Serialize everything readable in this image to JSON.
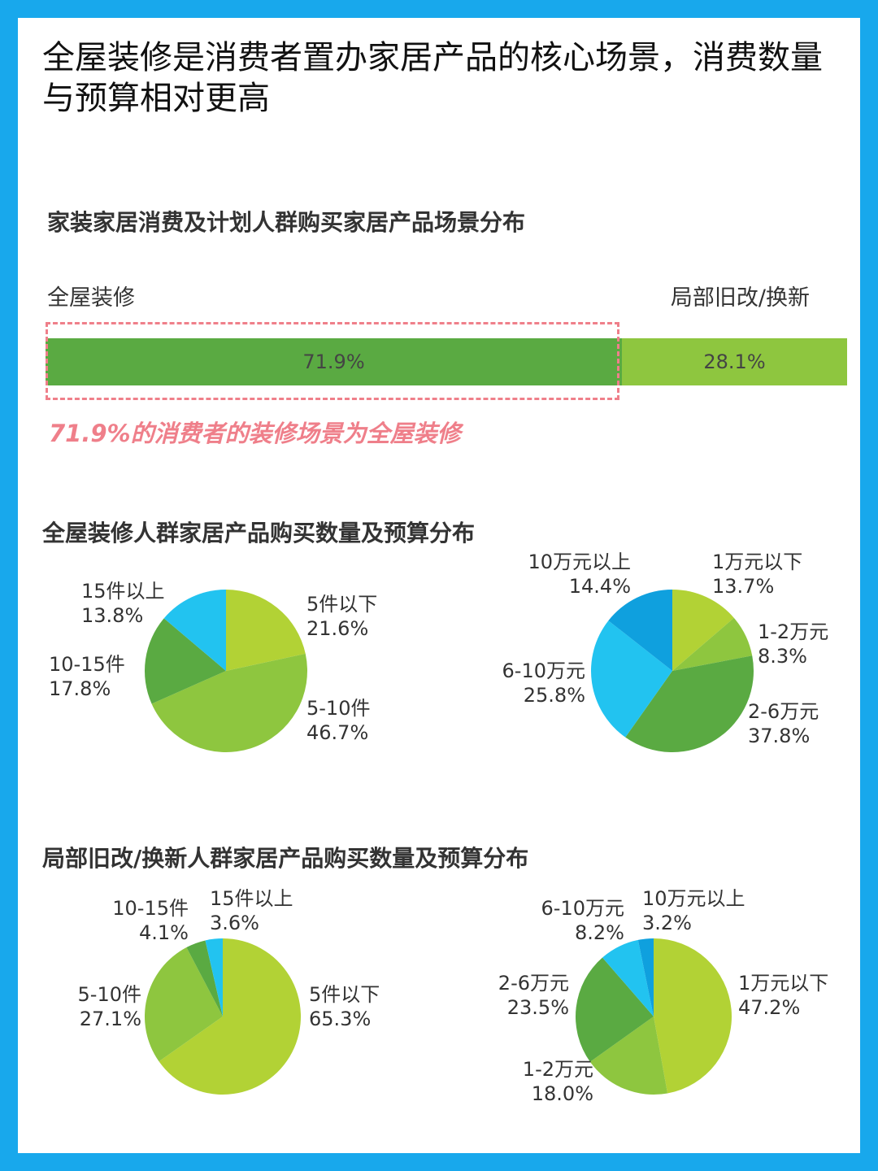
{
  "headline": "全屋装修是消费者置办家居产品的核心场景，消费数量与预算相对更高",
  "scene": {
    "title": "家装家居消费及计划人群购买家居产品场景分布",
    "segments": [
      {
        "label": "全屋装修",
        "value": 71.9,
        "text": "71.9%",
        "color": "#5aaa42"
      },
      {
        "label": "局部旧改/换新",
        "value": 28.1,
        "text": "28.1%",
        "color": "#8ec63f"
      }
    ],
    "note": "71.9%的消费者的装修场景为全屋装修"
  },
  "full": {
    "title": "全屋装修人群家居产品购买数量及预算分布",
    "qty_labels": [
      "5件以下",
      "21.6%",
      "5-10件",
      "46.7%",
      "10-15件",
      "17.8%",
      "15件以上",
      "13.8%"
    ],
    "budget_labels": [
      "1万元以下",
      "13.7%",
      "1-2万元",
      "8.3%",
      "2-6万元",
      "37.8%",
      "6-10万元",
      "25.8%",
      "10万元以上",
      "14.4%"
    ]
  },
  "partial": {
    "title": "局部旧改/换新人群家居产品购买数量及预算分布",
    "qty_labels": [
      "5件以下",
      "65.3%",
      "5-10件",
      "27.1%",
      "10-15件",
      "4.1%",
      "15件以上",
      "3.6%"
    ],
    "budget_labels": [
      "1万元以下",
      "47.2%",
      "1-2万元",
      "18.0%",
      "2-6万元",
      "23.5%",
      "6-10万元",
      "8.2%",
      "10万元以上",
      "3.2%"
    ]
  },
  "colors": {
    "frame": "#18a8ec",
    "accent_note": "#ef7f8a"
  },
  "chart_data": [
    {
      "type": "bar",
      "stacked": true,
      "orientation": "horizontal",
      "title": "家装家居消费及计划人群购买家居产品场景分布",
      "categories": [
        "全屋装修",
        "局部旧改/换新"
      ],
      "values": [
        71.9,
        28.1
      ]
    },
    {
      "type": "pie",
      "labels": [
        "5件以下",
        "5-10件",
        "10-15件",
        "15件以上"
      ],
      "values": [
        21.6,
        46.7,
        17.8,
        13.8
      ],
      "colors": [
        "#b2d235",
        "#8ec63f",
        "#5aaa42",
        "#22c3f0"
      ]
    },
    {
      "type": "pie",
      "labels": [
        "1万元以下",
        "1-2万元",
        "2-6万元",
        "6-10万元",
        "10万元以上"
      ],
      "values": [
        13.7,
        8.3,
        37.8,
        25.8,
        14.4
      ],
      "colors": [
        "#b2d235",
        "#8ec63f",
        "#5aaa42",
        "#22c3f0",
        "#0fa0de"
      ]
    },
    {
      "type": "pie",
      "labels": [
        "5件以下",
        "5-10件",
        "10-15件",
        "15件以上"
      ],
      "values": [
        65.3,
        27.1,
        4.1,
        3.6
      ],
      "colors": [
        "#b2d235",
        "#8ec63f",
        "#5aaa42",
        "#22c3f0"
      ]
    },
    {
      "type": "pie",
      "labels": [
        "1万元以下",
        "1-2万元",
        "2-6万元",
        "6-10万元",
        "10万元以上"
      ],
      "values": [
        47.2,
        18.0,
        23.5,
        8.2,
        3.2
      ],
      "colors": [
        "#b2d235",
        "#8ec63f",
        "#5aaa42",
        "#22c3f0",
        "#0fa0de"
      ]
    }
  ]
}
